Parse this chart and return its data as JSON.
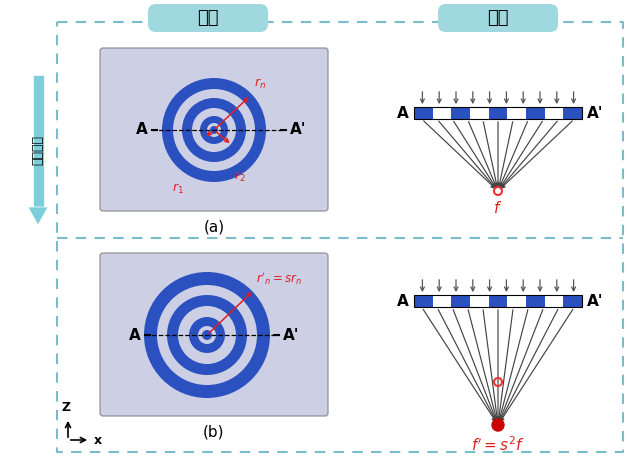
{
  "title_fufu": "俯視",
  "title_chuan": "串像",
  "label_stretch": "拉伸透鏡",
  "panel_bg": "#CDD0E5",
  "ring_blue_dark": "#2B50C0",
  "header_bg": "#A0D8E0",
  "dashed_border": "#7BBCCC",
  "arrow_color": "#444444",
  "red_color": "#DD2020",
  "focal_red_open": "#EE3333",
  "focal_red_fill": "#CC0000",
  "panel_border": "#888888",
  "bg_white": "#FFFFFF"
}
